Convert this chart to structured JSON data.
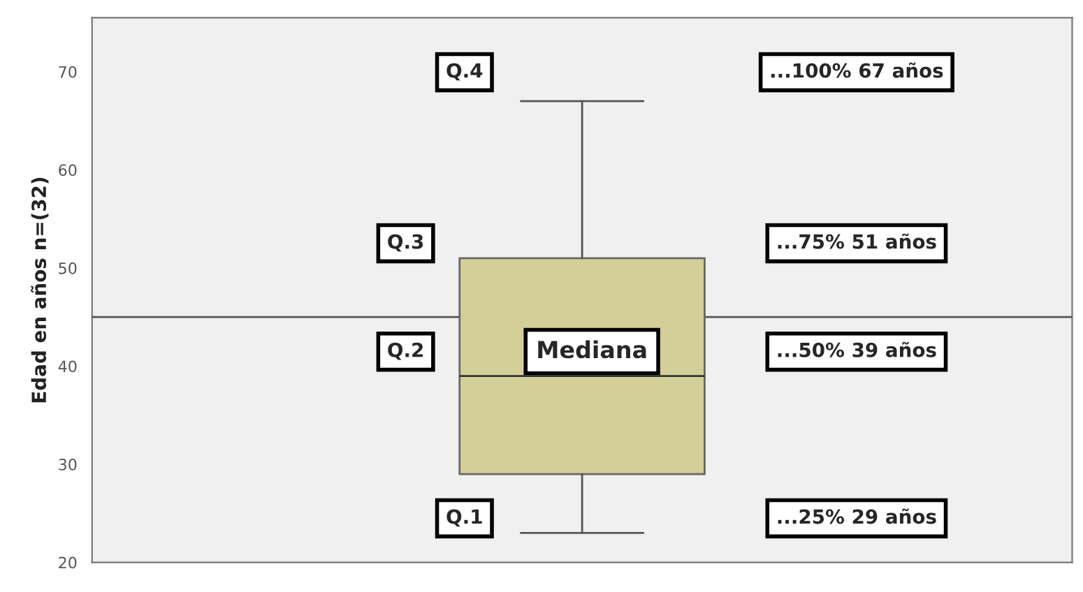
{
  "chart_data": {
    "type": "box",
    "ylabel": "Edad en años n=(32)",
    "categories": [
      null
    ],
    "boxes": [
      {
        "low": 23,
        "q1": 29,
        "median": 39,
        "q3": 51,
        "high": 67
      }
    ],
    "color": "#d3cf98",
    "ylim": [
      20,
      75.5
    ],
    "yticks": [
      20,
      30,
      40,
      50,
      60,
      70
    ],
    "grid": false,
    "ref_lines": [
      {
        "axis": "y",
        "value": 45,
        "color": "#555555"
      }
    ],
    "annotations": [
      "Q.4",
      "...100% 67 años",
      "Q.3",
      "...75% 51 años",
      "Q.2",
      "Mediana",
      "...50% 39 años",
      "Q.1",
      "...25% 29 años"
    ]
  }
}
